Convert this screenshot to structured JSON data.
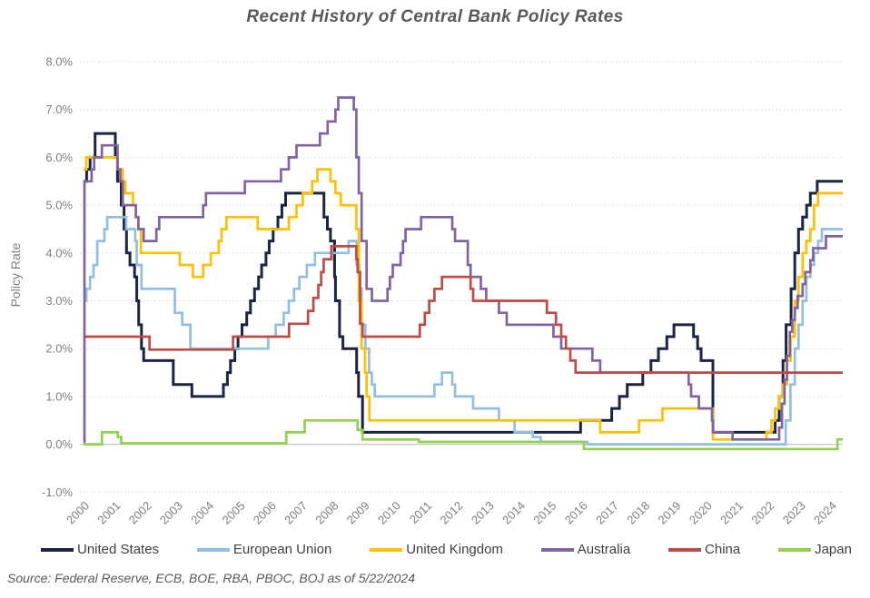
{
  "title": "Recent History of Central Bank Policy Rates",
  "source_note": "Source: Federal Reserve, ECB, BOE, RBA, PBOC, BOJ as of 5/22/2024",
  "chart_data": {
    "type": "line",
    "step": true,
    "title": "Recent History of Central Bank Policy Rates",
    "xlabel": "",
    "ylabel": "Policy Rate",
    "ylim": [
      -1.0,
      8.0
    ],
    "x_range": [
      2000,
      2024.4
    ],
    "grid": "horizontal, dotted",
    "legend_position": "bottom",
    "grid_color": "#d9d9d9",
    "zero_line_color": "#c6c6c6",
    "tick_label_color": "#7f7f7f",
    "ytick_values": [
      8,
      7,
      6,
      5,
      4,
      3,
      2,
      1,
      0,
      -1
    ],
    "ytick_labels": [
      "8.0%",
      "7.0%",
      "6.0%",
      "5.0%",
      "4.0%",
      "3.0%",
      "2.0%",
      "1.0%",
      "0.0%",
      "-1.0%"
    ],
    "xtick_values": [
      2000,
      2001,
      2002,
      2003,
      2004,
      2005,
      2006,
      2007,
      2008,
      2009,
      2010,
      2011,
      2012,
      2013,
      2014,
      2015,
      2016,
      2017,
      2018,
      2019,
      2020,
      2021,
      2022,
      2023,
      2024
    ],
    "series": [
      {
        "name": "United States",
        "color": "#1b2440",
        "points": [
          [
            2000.0,
            5.5
          ],
          [
            2000.1,
            5.75
          ],
          [
            2000.21,
            6.0
          ],
          [
            2000.37,
            6.5
          ],
          [
            2001.02,
            6.0
          ],
          [
            2001.09,
            5.5
          ],
          [
            2001.21,
            5.0
          ],
          [
            2001.3,
            4.5
          ],
          [
            2001.38,
            4.0
          ],
          [
            2001.49,
            3.75
          ],
          [
            2001.64,
            3.5
          ],
          [
            2001.71,
            3.0
          ],
          [
            2001.77,
            2.5
          ],
          [
            2001.86,
            2.0
          ],
          [
            2001.93,
            1.75
          ],
          [
            2002.88,
            1.25
          ],
          [
            2003.48,
            1.0
          ],
          [
            2004.49,
            1.25
          ],
          [
            2004.62,
            1.5
          ],
          [
            2004.72,
            1.75
          ],
          [
            2004.86,
            2.0
          ],
          [
            2004.96,
            2.25
          ],
          [
            2005.09,
            2.5
          ],
          [
            2005.24,
            2.75
          ],
          [
            2005.36,
            3.0
          ],
          [
            2005.49,
            3.25
          ],
          [
            2005.62,
            3.5
          ],
          [
            2005.72,
            3.75
          ],
          [
            2005.86,
            4.0
          ],
          [
            2005.96,
            4.25
          ],
          [
            2006.09,
            4.5
          ],
          [
            2006.24,
            4.75
          ],
          [
            2006.37,
            5.0
          ],
          [
            2006.49,
            5.25
          ],
          [
            2007.72,
            4.75
          ],
          [
            2007.83,
            4.5
          ],
          [
            2007.93,
            4.25
          ],
          [
            2008.06,
            3.5
          ],
          [
            2008.09,
            3.0
          ],
          [
            2008.22,
            2.25
          ],
          [
            2008.33,
            2.0
          ],
          [
            2008.77,
            1.5
          ],
          [
            2008.83,
            1.0
          ],
          [
            2008.96,
            0.25
          ],
          [
            2015.96,
            0.5
          ],
          [
            2016.96,
            0.75
          ],
          [
            2017.21,
            1.0
          ],
          [
            2017.46,
            1.25
          ],
          [
            2017.96,
            1.5
          ],
          [
            2018.22,
            1.75
          ],
          [
            2018.46,
            2.0
          ],
          [
            2018.73,
            2.25
          ],
          [
            2018.96,
            2.5
          ],
          [
            2019.59,
            2.25
          ],
          [
            2019.72,
            2.0
          ],
          [
            2019.83,
            1.75
          ],
          [
            2020.21,
            0.25
          ],
          [
            2022.21,
            0.5
          ],
          [
            2022.34,
            1.0
          ],
          [
            2022.46,
            1.75
          ],
          [
            2022.56,
            2.5
          ],
          [
            2022.72,
            3.25
          ],
          [
            2022.84,
            4.0
          ],
          [
            2022.96,
            4.5
          ],
          [
            2023.09,
            4.75
          ],
          [
            2023.22,
            5.0
          ],
          [
            2023.34,
            5.25
          ],
          [
            2023.56,
            5.5
          ],
          [
            2024.38,
            5.5
          ]
        ]
      },
      {
        "name": "European Union",
        "color": "#92bfdf",
        "points": [
          [
            2000.0,
            3.0
          ],
          [
            2000.09,
            3.25
          ],
          [
            2000.21,
            3.5
          ],
          [
            2000.32,
            3.75
          ],
          [
            2000.44,
            4.25
          ],
          [
            2000.67,
            4.5
          ],
          [
            2000.76,
            4.75
          ],
          [
            2001.37,
            4.5
          ],
          [
            2001.66,
            4.25
          ],
          [
            2001.71,
            3.75
          ],
          [
            2001.86,
            3.25
          ],
          [
            2002.93,
            2.75
          ],
          [
            2003.17,
            2.5
          ],
          [
            2003.43,
            2.0
          ],
          [
            2005.93,
            2.25
          ],
          [
            2006.17,
            2.5
          ],
          [
            2006.43,
            2.75
          ],
          [
            2006.59,
            3.0
          ],
          [
            2006.76,
            3.25
          ],
          [
            2006.93,
            3.5
          ],
          [
            2007.17,
            3.75
          ],
          [
            2007.43,
            4.0
          ],
          [
            2008.51,
            4.25
          ],
          [
            2008.77,
            3.75
          ],
          [
            2008.86,
            3.25
          ],
          [
            2008.93,
            2.5
          ],
          [
            2009.05,
            2.0
          ],
          [
            2009.17,
            1.5
          ],
          [
            2009.26,
            1.25
          ],
          [
            2009.35,
            1.0
          ],
          [
            2011.27,
            1.25
          ],
          [
            2011.51,
            1.5
          ],
          [
            2011.84,
            1.25
          ],
          [
            2011.93,
            1.0
          ],
          [
            2012.51,
            0.75
          ],
          [
            2013.34,
            0.5
          ],
          [
            2013.84,
            0.25
          ],
          [
            2014.43,
            0.15
          ],
          [
            2014.68,
            0.05
          ],
          [
            2016.18,
            0.0
          ],
          [
            2022.55,
            0.5
          ],
          [
            2022.7,
            1.25
          ],
          [
            2022.84,
            2.0
          ],
          [
            2022.96,
            2.5
          ],
          [
            2023.09,
            3.0
          ],
          [
            2023.21,
            3.5
          ],
          [
            2023.34,
            3.75
          ],
          [
            2023.46,
            4.0
          ],
          [
            2023.59,
            4.25
          ],
          [
            2023.71,
            4.5
          ],
          [
            2024.38,
            4.5
          ]
        ]
      },
      {
        "name": "United Kingdom",
        "color": "#ffc000",
        "points": [
          [
            2000.0,
            5.75
          ],
          [
            2000.09,
            6.0
          ],
          [
            2001.09,
            5.75
          ],
          [
            2001.26,
            5.5
          ],
          [
            2001.34,
            5.25
          ],
          [
            2001.59,
            5.0
          ],
          [
            2001.68,
            4.75
          ],
          [
            2001.76,
            4.5
          ],
          [
            2001.84,
            4.0
          ],
          [
            2003.09,
            3.75
          ],
          [
            2003.51,
            3.5
          ],
          [
            2003.84,
            3.75
          ],
          [
            2004.09,
            4.0
          ],
          [
            2004.34,
            4.25
          ],
          [
            2004.43,
            4.5
          ],
          [
            2004.59,
            4.75
          ],
          [
            2005.59,
            4.5
          ],
          [
            2006.59,
            4.75
          ],
          [
            2006.84,
            5.0
          ],
          [
            2007.04,
            5.25
          ],
          [
            2007.34,
            5.5
          ],
          [
            2007.51,
            5.75
          ],
          [
            2007.93,
            5.5
          ],
          [
            2008.09,
            5.25
          ],
          [
            2008.26,
            5.0
          ],
          [
            2008.76,
            4.5
          ],
          [
            2008.84,
            3.0
          ],
          [
            2008.93,
            2.0
          ],
          [
            2009.04,
            1.5
          ],
          [
            2009.09,
            1.0
          ],
          [
            2009.18,
            0.5
          ],
          [
            2016.59,
            0.25
          ],
          [
            2017.84,
            0.5
          ],
          [
            2018.59,
            0.75
          ],
          [
            2020.21,
            0.1
          ],
          [
            2021.93,
            0.25
          ],
          [
            2022.09,
            0.5
          ],
          [
            2022.21,
            0.75
          ],
          [
            2022.34,
            1.0
          ],
          [
            2022.46,
            1.25
          ],
          [
            2022.59,
            1.75
          ],
          [
            2022.71,
            2.25
          ],
          [
            2022.84,
            3.0
          ],
          [
            2022.96,
            3.5
          ],
          [
            2023.09,
            4.0
          ],
          [
            2023.21,
            4.25
          ],
          [
            2023.34,
            4.5
          ],
          [
            2023.46,
            5.0
          ],
          [
            2023.59,
            5.25
          ],
          [
            2024.38,
            5.25
          ]
        ]
      },
      {
        "name": "Australia",
        "color": "#8064a2",
        "points": [
          [
            2000.0,
            0.05
          ],
          [
            2000.03,
            5.5
          ],
          [
            2000.26,
            5.75
          ],
          [
            2000.34,
            6.0
          ],
          [
            2000.59,
            6.25
          ],
          [
            2001.09,
            5.75
          ],
          [
            2001.18,
            5.5
          ],
          [
            2001.26,
            5.0
          ],
          [
            2001.68,
            4.75
          ],
          [
            2001.76,
            4.5
          ],
          [
            2001.93,
            4.25
          ],
          [
            2002.34,
            4.5
          ],
          [
            2002.43,
            4.75
          ],
          [
            2003.84,
            5.0
          ],
          [
            2003.93,
            5.25
          ],
          [
            2005.18,
            5.5
          ],
          [
            2006.34,
            5.75
          ],
          [
            2006.59,
            6.0
          ],
          [
            2006.84,
            6.25
          ],
          [
            2007.59,
            6.5
          ],
          [
            2007.84,
            6.75
          ],
          [
            2008.09,
            7.0
          ],
          [
            2008.18,
            7.25
          ],
          [
            2008.68,
            7.0
          ],
          [
            2008.76,
            6.0
          ],
          [
            2008.84,
            5.25
          ],
          [
            2008.93,
            4.25
          ],
          [
            2009.09,
            3.25
          ],
          [
            2009.26,
            3.0
          ],
          [
            2009.76,
            3.25
          ],
          [
            2009.84,
            3.5
          ],
          [
            2009.93,
            3.75
          ],
          [
            2010.18,
            4.0
          ],
          [
            2010.26,
            4.25
          ],
          [
            2010.34,
            4.5
          ],
          [
            2010.84,
            4.75
          ],
          [
            2011.84,
            4.5
          ],
          [
            2011.93,
            4.25
          ],
          [
            2012.34,
            3.75
          ],
          [
            2012.43,
            3.5
          ],
          [
            2012.76,
            3.25
          ],
          [
            2012.93,
            3.0
          ],
          [
            2013.34,
            2.75
          ],
          [
            2013.59,
            2.5
          ],
          [
            2015.09,
            2.25
          ],
          [
            2015.34,
            2.0
          ],
          [
            2016.34,
            1.75
          ],
          [
            2016.59,
            1.5
          ],
          [
            2019.43,
            1.25
          ],
          [
            2019.51,
            1.0
          ],
          [
            2019.76,
            0.75
          ],
          [
            2020.18,
            0.5
          ],
          [
            2020.22,
            0.25
          ],
          [
            2020.84,
            0.1
          ],
          [
            2022.34,
            0.35
          ],
          [
            2022.43,
            0.85
          ],
          [
            2022.51,
            1.35
          ],
          [
            2022.59,
            1.85
          ],
          [
            2022.68,
            2.35
          ],
          [
            2022.76,
            2.6
          ],
          [
            2022.84,
            2.85
          ],
          [
            2022.93,
            3.1
          ],
          [
            2023.09,
            3.35
          ],
          [
            2023.18,
            3.6
          ],
          [
            2023.34,
            3.85
          ],
          [
            2023.43,
            4.1
          ],
          [
            2023.84,
            4.35
          ],
          [
            2024.38,
            4.35
          ]
        ]
      },
      {
        "name": "China",
        "color": "#bf4b47",
        "points": [
          [
            2000.0,
            2.25
          ],
          [
            2002.12,
            1.98
          ],
          [
            2004.8,
            2.25
          ],
          [
            2006.6,
            2.52
          ],
          [
            2007.21,
            2.79
          ],
          [
            2007.38,
            3.06
          ],
          [
            2007.54,
            3.33
          ],
          [
            2007.63,
            3.6
          ],
          [
            2007.71,
            3.87
          ],
          [
            2007.96,
            4.14
          ],
          [
            2008.76,
            3.87
          ],
          [
            2008.8,
            3.6
          ],
          [
            2008.88,
            2.52
          ],
          [
            2008.96,
            2.25
          ],
          [
            2010.8,
            2.5
          ],
          [
            2010.96,
            2.75
          ],
          [
            2011.1,
            3.0
          ],
          [
            2011.27,
            3.25
          ],
          [
            2011.51,
            3.5
          ],
          [
            2012.43,
            3.25
          ],
          [
            2012.51,
            3.0
          ],
          [
            2014.88,
            2.75
          ],
          [
            2015.17,
            2.5
          ],
          [
            2015.34,
            2.25
          ],
          [
            2015.49,
            2.0
          ],
          [
            2015.63,
            1.75
          ],
          [
            2015.8,
            1.5
          ],
          [
            2024.38,
            1.5
          ]
        ]
      },
      {
        "name": "Japan",
        "color": "#92d050",
        "points": [
          [
            2000.0,
            0.0
          ],
          [
            2000.59,
            0.25
          ],
          [
            2001.1,
            0.15
          ],
          [
            2001.21,
            0.02
          ],
          [
            2006.51,
            0.25
          ],
          [
            2007.1,
            0.5
          ],
          [
            2008.8,
            0.3
          ],
          [
            2008.96,
            0.1
          ],
          [
            2010.76,
            0.05
          ],
          [
            2016.07,
            -0.1
          ],
          [
            2024.21,
            0.1
          ],
          [
            2024.38,
            0.1
          ]
        ]
      }
    ]
  }
}
